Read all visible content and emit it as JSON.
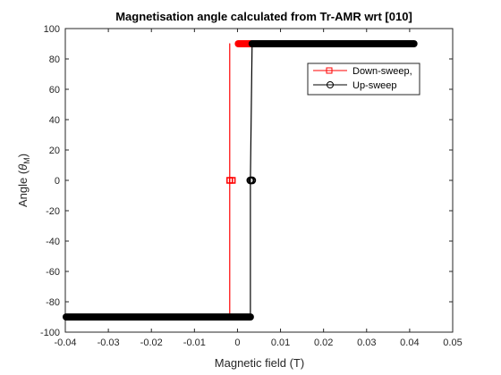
{
  "chart_data": {
    "type": "line",
    "title": "Magnetisation angle calculated from Tr-AMR wrt [010]",
    "xlabel": "Magnetic field (T)",
    "ylabel_parts": {
      "base": "Angle (",
      "theta": "θ",
      "sub": "M",
      "close": ")"
    },
    "xlim": [
      -0.04,
      0.05
    ],
    "ylim": [
      -100,
      100
    ],
    "xticks": [
      -0.04,
      -0.03,
      -0.02,
      -0.01,
      0,
      0.01,
      0.02,
      0.03,
      0.04,
      0.05
    ],
    "xtick_labels": [
      "-0.04",
      "-0.03",
      "-0.02",
      "-0.01",
      "0",
      "0.01",
      "0.02",
      "0.03",
      "0.04",
      "0.05"
    ],
    "yticks": [
      -100,
      -80,
      -60,
      -40,
      -20,
      0,
      20,
      40,
      60,
      80,
      100
    ],
    "ytick_labels": [
      "-100",
      "-80",
      "-60",
      "-40",
      "-20",
      "0",
      "20",
      "40",
      "60",
      "80",
      "100"
    ],
    "grid": false,
    "legend_position": "top-right",
    "series": [
      {
        "name": "Down-sweep,",
        "color": "#ff0000",
        "marker": "square",
        "segments": [
          {
            "from": [
              0.0002,
              90
            ],
            "to": [
              0.0032,
              90
            ],
            "dense": true
          },
          {
            "from": [
              -0.0018,
              90
            ],
            "to": [
              -0.0018,
              0
            ]
          },
          {
            "from": [
              -0.0018,
              0
            ],
            "to": [
              -0.0018,
              -90
            ]
          }
        ],
        "points": [
          [
            -0.0018,
            0
          ],
          [
            -0.0012,
            0
          ]
        ]
      },
      {
        "name": "Up-sweep",
        "color": "#000000",
        "marker": "circle",
        "segments": [
          {
            "from": [
              -0.0398,
              -90
            ],
            "to": [
              0.003,
              -90
            ],
            "dense": true
          },
          {
            "from": [
              0.003,
              -90
            ],
            "to": [
              0.003,
              0
            ]
          },
          {
            "from": [
              0.003,
              0
            ],
            "to": [
              0.0034,
              90
            ]
          },
          {
            "from": [
              0.0034,
              90
            ],
            "to": [
              0.041,
              90
            ],
            "dense": true
          }
        ],
        "points": [
          [
            0.003,
            0
          ],
          [
            0.0034,
            0
          ]
        ]
      }
    ]
  }
}
